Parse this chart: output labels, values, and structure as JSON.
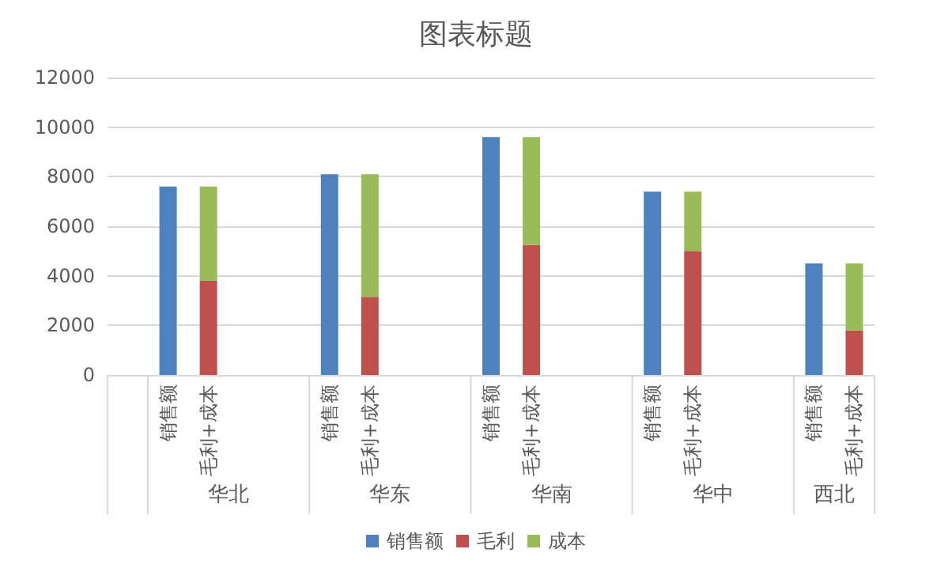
{
  "chart_data": {
    "type": "bar",
    "title": "图表标题",
    "categories": [
      null,
      "销售额",
      "毛利+成本",
      null,
      null,
      "销售额",
      "毛利+成本",
      null,
      null,
      "销售额",
      "毛利+成本",
      null,
      null,
      "销售额",
      "毛利+成本",
      null,
      null,
      "销售额",
      "毛利+成本"
    ],
    "series": [
      {
        "name": "销售额",
        "color": "#4f81bd",
        "values": [
          null,
          7600,
          null,
          null,
          null,
          8100,
          null,
          null,
          null,
          9600,
          null,
          null,
          null,
          7400,
          null,
          null,
          null,
          4500,
          null
        ]
      },
      {
        "name": "毛利",
        "color": "#c0504d",
        "values": [
          null,
          null,
          3800,
          null,
          null,
          null,
          3150,
          null,
          null,
          null,
          5250,
          null,
          null,
          null,
          5000,
          null,
          null,
          null,
          1800
        ]
      },
      {
        "name": "成本",
        "color": "#9bbb59",
        "values": [
          null,
          null,
          3800,
          null,
          null,
          null,
          4950,
          null,
          null,
          null,
          4350,
          null,
          null,
          null,
          2400,
          null,
          null,
          null,
          2700
        ]
      }
    ],
    "stacked": true,
    "annotations": [
      "华北",
      "华东",
      "华南",
      "华中",
      "西北"
    ],
    "ylim": [
      0,
      12000
    ],
    "yticks": [
      0,
      2000,
      4000,
      6000,
      8000,
      10000,
      12000
    ],
    "grid": "y",
    "legend": "bottom"
  }
}
